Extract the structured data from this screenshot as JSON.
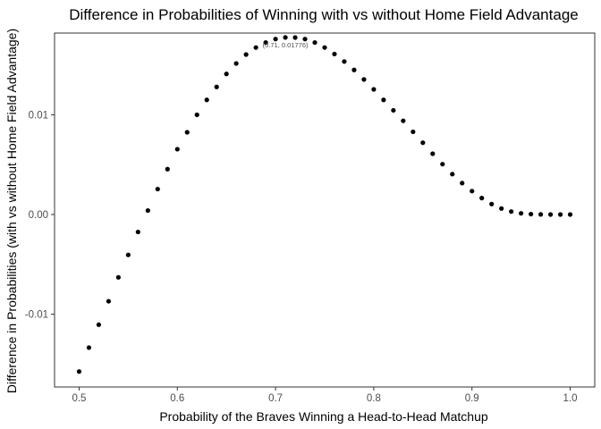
{
  "chart_data": {
    "type": "scatter",
    "title": "Difference in Probabilities of Winning with vs without Home Field Advantage",
    "xlabel": "Probability of the Braves Winning a Head-to-Head Matchup",
    "ylabel": "Difference in Probabilities (with vs without Home Field Advantage)",
    "xlim": [
      0.475,
      1.025
    ],
    "ylim": [
      -0.0173,
      0.0182
    ],
    "x_ticks": [
      0.5,
      0.6,
      0.7,
      0.8,
      0.9,
      1.0
    ],
    "x_tick_labels": [
      "0.5",
      "0.6",
      "0.7",
      "0.8",
      "0.9",
      "1.0"
    ],
    "y_ticks": [
      -0.01,
      0.0,
      0.01
    ],
    "y_tick_labels": [
      "-0.01",
      "0.00",
      "0.01"
    ],
    "grid": false,
    "point_color": "#000000",
    "annotation": {
      "text": "(0.71, 0.01776)",
      "x": 0.71,
      "y": 0.01776
    },
    "points": [
      [
        0.5,
        -0.01575
      ],
      [
        0.51,
        -0.01335
      ],
      [
        0.52,
        -0.01105
      ],
      [
        0.53,
        -0.0087
      ],
      [
        0.54,
        -0.0063
      ],
      [
        0.55,
        -0.00405
      ],
      [
        0.56,
        -0.00175
      ],
      [
        0.57,
        0.0004
      ],
      [
        0.58,
        0.00255
      ],
      [
        0.59,
        0.00455
      ],
      [
        0.6,
        0.00655
      ],
      [
        0.61,
        0.00825
      ],
      [
        0.62,
        0.01
      ],
      [
        0.63,
        0.0115
      ],
      [
        0.64,
        0.0128
      ],
      [
        0.65,
        0.0141
      ],
      [
        0.66,
        0.01515
      ],
      [
        0.67,
        0.01605
      ],
      [
        0.68,
        0.01675
      ],
      [
        0.69,
        0.01725
      ],
      [
        0.7,
        0.0176
      ],
      [
        0.71,
        0.01776
      ],
      [
        0.72,
        0.01775
      ],
      [
        0.73,
        0.0176
      ],
      [
        0.74,
        0.01725
      ],
      [
        0.75,
        0.01675
      ],
      [
        0.76,
        0.0161
      ],
      [
        0.77,
        0.01535
      ],
      [
        0.78,
        0.0145
      ],
      [
        0.79,
        0.01355
      ],
      [
        0.8,
        0.01255
      ],
      [
        0.81,
        0.0115
      ],
      [
        0.82,
        0.01045
      ],
      [
        0.83,
        0.0094
      ],
      [
        0.84,
        0.0083
      ],
      [
        0.85,
        0.0072
      ],
      [
        0.86,
        0.0061
      ],
      [
        0.87,
        0.00505
      ],
      [
        0.88,
        0.00405
      ],
      [
        0.89,
        0.00315
      ],
      [
        0.9,
        0.00235
      ],
      [
        0.91,
        0.00165
      ],
      [
        0.92,
        0.00105
      ],
      [
        0.93,
        0.0006
      ],
      [
        0.94,
        0.0003
      ],
      [
        0.95,
        0.00012
      ],
      [
        0.96,
        4e-05
      ],
      [
        0.97,
        1e-05
      ],
      [
        0.98,
        0.0
      ],
      [
        0.99,
        0.0
      ],
      [
        1.0,
        0.0
      ]
    ]
  }
}
